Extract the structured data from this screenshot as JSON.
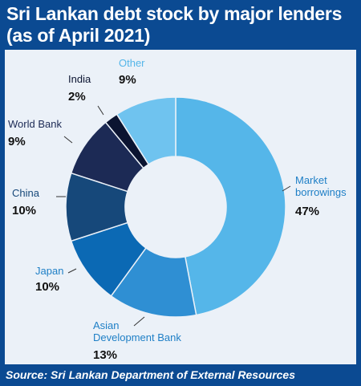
{
  "title_line1": "Sri Lankan debt stock by major lenders",
  "title_line2": "(as of April 2021)",
  "source": "Source: Sri Lankan Department of External Resources",
  "chart_data": {
    "type": "pie",
    "donut": true,
    "title": "Sri Lankan debt stock by major lenders (as of April 2021)",
    "slices": [
      {
        "name": "Market borrowings",
        "value": 47,
        "label": "47%",
        "color": "#55b6e9"
      },
      {
        "name": "Asian Development Bank",
        "value": 13,
        "label": "13%",
        "color": "#2f8fd3"
      },
      {
        "name": "Japan",
        "value": 10,
        "label": "10%",
        "color": "#0b69b4"
      },
      {
        "name": "China",
        "value": 10,
        "label": "10%",
        "color": "#16487a"
      },
      {
        "name": "World Bank",
        "value": 9,
        "label": "9%",
        "color": "#1c2a55"
      },
      {
        "name": "India",
        "value": 2,
        "label": "2%",
        "color": "#0b1431"
      },
      {
        "name": "Other",
        "value": 9,
        "label": "9%",
        "color": "#6fc3ef"
      }
    ]
  }
}
